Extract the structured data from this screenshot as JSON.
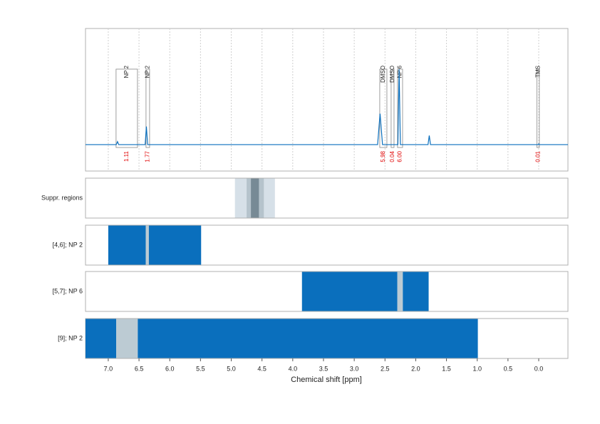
{
  "chart_data": {
    "type": "line",
    "x_label": "Chemical shift [ppm]",
    "xlim": [
      7.37,
      -0.475
    ],
    "xticks": [
      {
        "value": 7,
        "label": "7.0"
      },
      6.5,
      {
        "value": 6,
        "label": "6.0"
      },
      5.5,
      {
        "value": 5,
        "label": "5.0"
      },
      4.5,
      {
        "value": 4,
        "label": "4.0"
      },
      3.5,
      {
        "value": 3,
        "label": "3.0"
      },
      2.5,
      {
        "value": 2,
        "label": "2.0"
      },
      1.5,
      {
        "value": 1,
        "label": "1.0"
      },
      0.5,
      {
        "value": 0,
        "label": "0.0"
      }
    ],
    "grid": true,
    "ylim": [
      -0.35,
      1.54
    ],
    "color": "#0a6fbd",
    "x": [
      7.37,
      6.87,
      6.85,
      6.83,
      6.4,
      6.38,
      6.36,
      2.62,
      2.58,
      2.54,
      2.29,
      2.27,
      2.25,
      1.8,
      1.78,
      1.76,
      0.01,
      0,
      -0.01,
      -0.475
    ],
    "values": [
      0,
      0,
      0.04,
      0,
      0,
      0.24,
      0,
      0,
      0.41,
      0,
      0,
      1.0,
      0,
      0,
      0.12,
      0,
      0,
      0.01,
      0,
      0
    ],
    "annotations": [
      {
        "label": "NP 2",
        "from": 6.873,
        "to": 6.525,
        "integral": 1.11,
        "integral_label": "1.11"
      },
      {
        "label": "NP 2",
        "from": 6.386,
        "to": 6.328,
        "integral": 1.77,
        "integral_label": "1.77"
      },
      {
        "label": "DMSO",
        "from": 2.585,
        "to": 2.469,
        "integral": 5.98,
        "integral_label": "5.98"
      },
      {
        "label": "DMSO",
        "from": 2.4,
        "to": 2.353,
        "integral": 0.04,
        "integral_label": "0.04"
      },
      {
        "label": "NP 6",
        "from": 2.296,
        "to": 2.214,
        "integral": 6.0,
        "integral_label": "6.00"
      },
      {
        "label": "TMS",
        "from": 0.03,
        "to": -0.01,
        "integral": 0.01,
        "integral_label": "0.01"
      }
    ],
    "annotation_color": "#888888",
    "integral_color": "#e00000",
    "tracks": [
      {
        "label": "Suppr. regions",
        "segments": [
          {
            "from": 4.94,
            "to": 4.29,
            "color": "#d6e0e8"
          },
          {
            "from": 4.75,
            "to": 4.47,
            "color": "#b5c3cc"
          },
          {
            "from": 4.68,
            "to": 4.55,
            "color": "#778a95"
          }
        ]
      },
      {
        "label": "[4,6]; NP 2",
        "segments": [
          {
            "from": 7.0,
            "to": 6.39,
            "color": "#0a6fbd"
          },
          {
            "from": 6.39,
            "to": 6.34,
            "color": "#bccbd3"
          },
          {
            "from": 6.34,
            "to": 5.49,
            "color": "#0a6fbd"
          }
        ]
      },
      {
        "label": "[5,7]; NP 6",
        "segments": [
          {
            "from": 3.85,
            "to": 2.3,
            "color": "#0a6fbd"
          },
          {
            "from": 2.3,
            "to": 2.21,
            "color": "#bccbd3"
          },
          {
            "from": 2.21,
            "to": 1.79,
            "color": "#0a6fbd"
          }
        ]
      },
      {
        "label": "[9]; NP 2",
        "segments": [
          {
            "from": 7.37,
            "to": 6.87,
            "color": "#0a6fbd"
          },
          {
            "from": 6.87,
            "to": 6.52,
            "color": "#bccbd3"
          },
          {
            "from": 6.52,
            "to": 0.99,
            "color": "#0a6fbd"
          }
        ]
      }
    ]
  }
}
